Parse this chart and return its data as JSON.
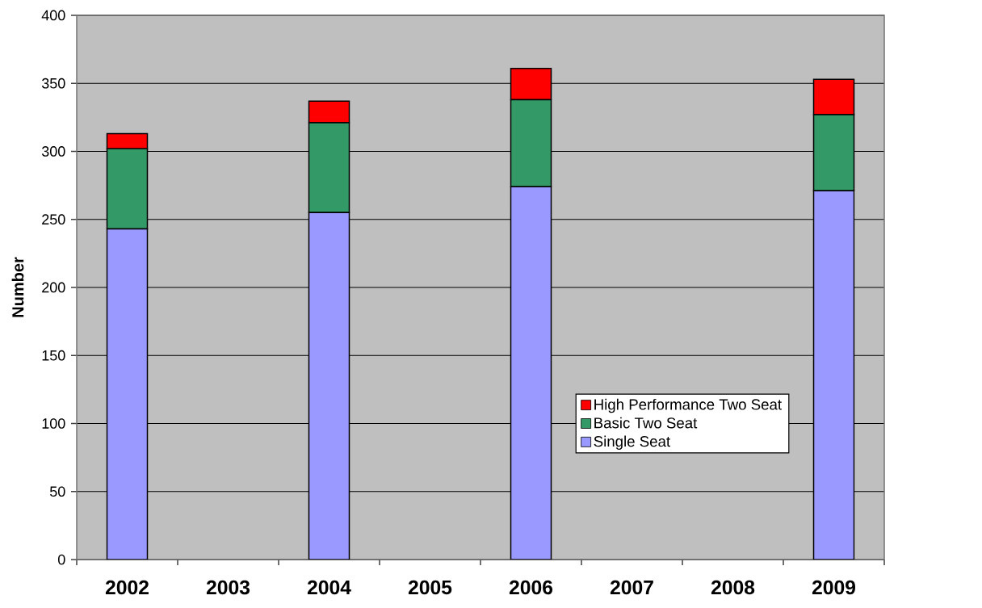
{
  "chart_data": {
    "type": "bar",
    "stacked": true,
    "ylabel": "Number",
    "categories": [
      "2002",
      "2003",
      "2004",
      "2005",
      "2006",
      "2007",
      "2008",
      "2009"
    ],
    "series": [
      {
        "name": "Single Seat",
        "color": "#9999ff",
        "values": [
          243,
          null,
          255,
          null,
          274,
          null,
          null,
          271
        ]
      },
      {
        "name": "Basic Two Seat",
        "color": "#339966",
        "values": [
          59,
          null,
          66,
          null,
          64,
          null,
          null,
          56
        ]
      },
      {
        "name": "High Performance Two Seat",
        "color": "#ff0000",
        "values": [
          11,
          null,
          16,
          null,
          23,
          null,
          null,
          26
        ]
      }
    ],
    "ylim": [
      0,
      400
    ],
    "yticks": [
      0,
      50,
      100,
      150,
      200,
      250,
      300,
      350,
      400
    ],
    "grid": "y",
    "legend": "bottom right"
  }
}
